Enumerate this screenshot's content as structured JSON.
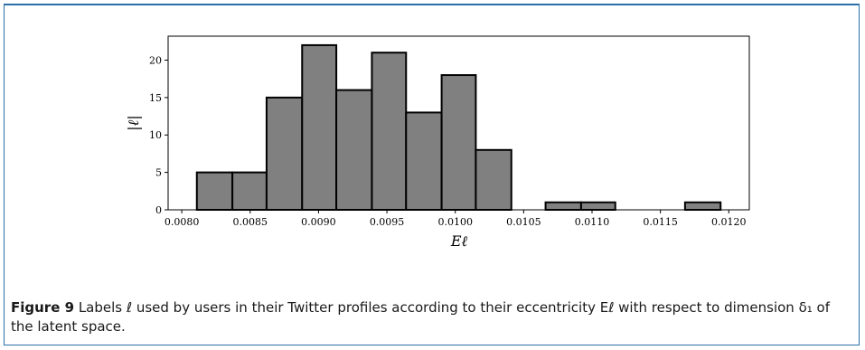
{
  "chart_data": {
    "type": "bar",
    "xlabel": "Eℓ",
    "ylabel": "|ℓ|",
    "xlim": [
      0.0079,
      0.01215
    ],
    "ylim": [
      0,
      23.2
    ],
    "xticks": [
      "0.0080",
      "0.0085",
      "0.0090",
      "0.0095",
      "0.0100",
      "0.0105",
      "0.0110",
      "0.0115",
      "0.0120"
    ],
    "xtick_values": [
      0.008,
      0.0085,
      0.009,
      0.0095,
      0.01,
      0.0105,
      0.011,
      0.0115,
      0.012
    ],
    "yticks": [
      "0",
      "5",
      "10",
      "15",
      "20"
    ],
    "ytick_values": [
      0,
      5,
      10,
      15,
      20
    ],
    "bin_edges": [
      0.00811,
      0.00837,
      0.00862,
      0.00888,
      0.00913,
      0.00939,
      0.00964,
      0.0099,
      0.01015,
      0.01041,
      0.01066,
      0.01092,
      0.01117,
      0.01143,
      0.01168,
      0.01194
    ],
    "values": [
      5,
      5,
      15,
      22,
      16,
      21,
      13,
      18,
      8,
      0,
      1,
      1,
      0,
      0,
      1
    ],
    "bar_color": "#808080",
    "edge_color": "#000000",
    "grid": false,
    "legend": false
  },
  "caption": {
    "lead": "Figure 9",
    "text": " Labels ℓ used by users in their Twitter profiles according to their eccentricity Eℓ with respect to dimension δ₁ of the latent space."
  }
}
